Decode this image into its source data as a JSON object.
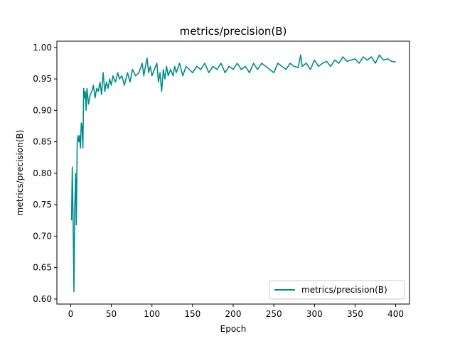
{
  "chart_data": {
    "type": "line",
    "title": "metrics/precision(B)",
    "xlabel": "Epoch",
    "ylabel": "metrics/precision(B)",
    "xlim": [
      -17,
      417
    ],
    "ylim": [
      0.592,
      1.01
    ],
    "xticks": [
      0,
      50,
      100,
      150,
      200,
      250,
      300,
      350,
      400
    ],
    "yticks": [
      0.6,
      0.65,
      0.7,
      0.75,
      0.8,
      0.85,
      0.9,
      0.95,
      1.0
    ],
    "ytick_labels": [
      "0.60",
      "0.65",
      "0.70",
      "0.75",
      "0.80",
      "0.85",
      "0.90",
      "0.95",
      "1.00"
    ],
    "grid": false,
    "legend_position": "lower-right",
    "series": [
      {
        "name": "metrics/precision(B)",
        "color": "#008b8b",
        "x": [
          1,
          2,
          3,
          4,
          5,
          6,
          7,
          8,
          9,
          10,
          11,
          12,
          13,
          14,
          15,
          16,
          17,
          18,
          19,
          20,
          22,
          24,
          26,
          28,
          30,
          32,
          34,
          36,
          38,
          40,
          42,
          44,
          46,
          48,
          50,
          52,
          55,
          58,
          60,
          63,
          66,
          70,
          73,
          76,
          80,
          84,
          88,
          90,
          92,
          94,
          96,
          98,
          100,
          103,
          106,
          108,
          110,
          112,
          114,
          116,
          118,
          120,
          123,
          126,
          128,
          130,
          134,
          138,
          142,
          146,
          150,
          155,
          160,
          165,
          170,
          175,
          180,
          185,
          190,
          195,
          200,
          205,
          210,
          215,
          220,
          225,
          230,
          235,
          240,
          245,
          250,
          255,
          260,
          265,
          270,
          275,
          280,
          283,
          285,
          290,
          295,
          300,
          305,
          310,
          315,
          320,
          325,
          330,
          335,
          340,
          345,
          350,
          355,
          360,
          365,
          370,
          375,
          380,
          385,
          390,
          395,
          400
        ],
        "y": [
          0.725,
          0.81,
          0.72,
          0.612,
          0.74,
          0.8,
          0.718,
          0.85,
          0.86,
          0.85,
          0.86,
          0.84,
          0.88,
          0.875,
          0.84,
          0.935,
          0.92,
          0.93,
          0.9,
          0.935,
          0.91,
          0.925,
          0.93,
          0.94,
          0.92,
          0.935,
          0.93,
          0.945,
          0.925,
          0.96,
          0.93,
          0.945,
          0.935,
          0.95,
          0.94,
          0.955,
          0.945,
          0.96,
          0.95,
          0.955,
          0.94,
          0.96,
          0.945,
          0.965,
          0.955,
          0.96,
          0.975,
          0.955,
          0.97,
          0.983,
          0.96,
          0.97,
          0.955,
          0.965,
          0.975,
          0.945,
          0.96,
          0.93,
          0.965,
          0.95,
          0.97,
          0.955,
          0.965,
          0.955,
          0.97,
          0.96,
          0.975,
          0.955,
          0.97,
          0.965,
          0.96,
          0.97,
          0.965,
          0.975,
          0.96,
          0.97,
          0.965,
          0.975,
          0.96,
          0.97,
          0.965,
          0.975,
          0.965,
          0.97,
          0.96,
          0.975,
          0.965,
          0.975,
          0.97,
          0.965,
          0.96,
          0.975,
          0.97,
          0.965,
          0.975,
          0.97,
          0.968,
          0.988,
          0.97,
          0.975,
          0.965,
          0.98,
          0.97,
          0.975,
          0.978,
          0.97,
          0.98,
          0.975,
          0.985,
          0.978,
          0.98,
          0.982,
          0.975,
          0.985,
          0.98,
          0.985,
          0.975,
          0.988,
          0.98,
          0.982,
          0.978,
          0.977
        ]
      }
    ]
  }
}
